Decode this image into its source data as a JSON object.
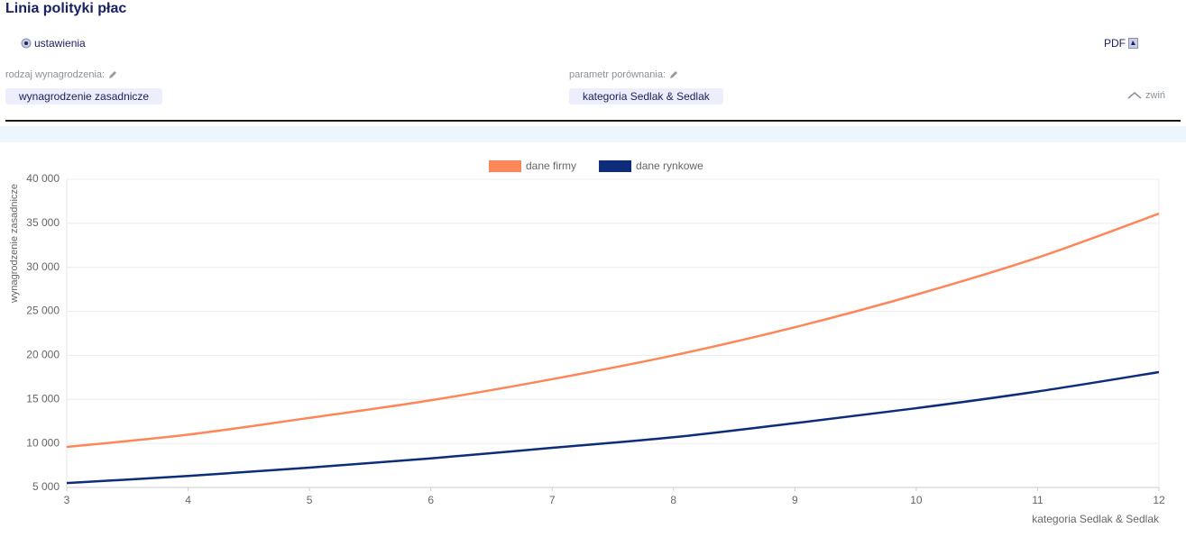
{
  "header": {
    "title": "Linia polityki płac",
    "settings": "ustawienia",
    "pdf": "PDF"
  },
  "filters": [
    {
      "label": "rodzaj wynagrodzenia:",
      "value": "wynagrodzenie zasadnicze"
    },
    {
      "label": "parametr porównania:",
      "value": "kategoria Sedlak & Sedlak"
    }
  ],
  "collapse": "zwiń",
  "chart_data": {
    "type": "line",
    "y_label": "wynagrodzenie zasadnicze",
    "x_label": "kategoria Sedlak & Sedlak",
    "x": [
      3,
      4,
      5,
      6,
      7,
      8,
      9,
      10,
      11,
      12
    ],
    "xlim": [
      3,
      12
    ],
    "xticks": [
      3,
      4,
      5,
      6,
      7,
      8,
      9,
      10,
      11,
      12
    ],
    "ylim": [
      5000,
      40000
    ],
    "yticks": [
      {
        "value": 5000,
        "label": "5 000"
      },
      {
        "value": 10000,
        "label": "10 000"
      },
      {
        "value": 15000,
        "label": "15 000"
      },
      {
        "value": 20000,
        "label": "20 000"
      },
      {
        "value": 25000,
        "label": "25 000"
      },
      {
        "value": 30000,
        "label": "30 000"
      },
      {
        "value": 35000,
        "label": "35 000"
      },
      {
        "value": 40000,
        "label": "40 000"
      }
    ],
    "grid": true,
    "legend": "top",
    "series": [
      {
        "name": "dane firmy",
        "color": "#ff8659",
        "values": [
          9600,
          11000,
          12900,
          14900,
          17300,
          20000,
          23200,
          26900,
          31100,
          36100
        ]
      },
      {
        "name": "dane rynkowe",
        "color": "#0d2c7a",
        "values": [
          5500,
          6300,
          7250,
          8300,
          9500,
          10700,
          12300,
          14000,
          15900,
          18100
        ]
      }
    ]
  }
}
